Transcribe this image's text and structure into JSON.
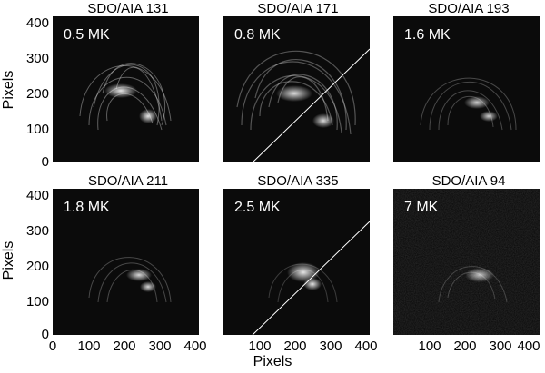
{
  "panels": [
    {
      "title": "SDO/AIA 131",
      "temp": "0.5 MK"
    },
    {
      "title": "SDO/AIA 171",
      "temp": "0.8 MK"
    },
    {
      "title": "SDO/AIA 193",
      "temp": "1.6 MK"
    },
    {
      "title": "SDO/AIA 211",
      "temp": "1.8 MK"
    },
    {
      "title": "SDO/AIA 335",
      "temp": "2.5 MK"
    },
    {
      "title": "SDO/AIA 94",
      "temp": "7 MK"
    }
  ],
  "axes": {
    "ylabel": "Pixels",
    "xlabel": "Pixels",
    "yticks": [
      "0",
      "100",
      "200",
      "300",
      "400"
    ],
    "xticks": [
      "0",
      "100",
      "200",
      "300",
      "400"
    ]
  },
  "colors": {
    "background": "#0b0b0b",
    "loops": "#ffffff"
  }
}
